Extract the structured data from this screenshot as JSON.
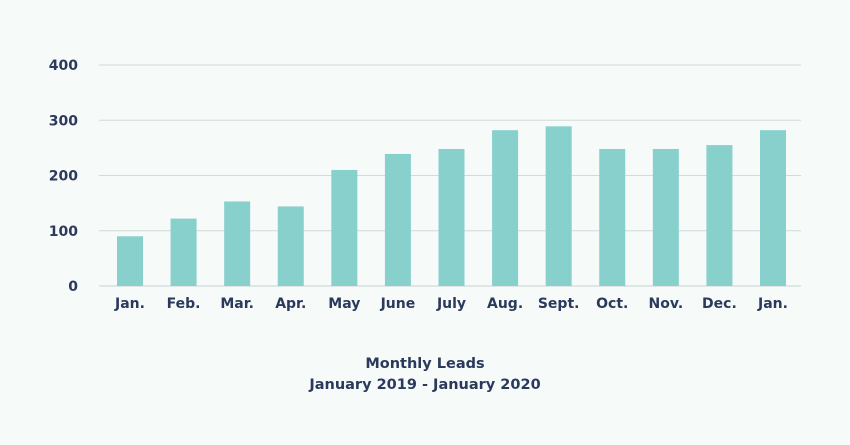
{
  "chart_data": {
    "type": "bar",
    "title": "Monthly Leads",
    "subtitle": "January 2019 - January 2020",
    "categories": [
      "Jan.",
      "Feb.",
      "Mar.",
      "Apr.",
      "May",
      "June",
      "July",
      "Aug.",
      "Sept.",
      "Oct.",
      "Nov.",
      "Dec.",
      "Jan."
    ],
    "values": [
      90,
      122,
      153,
      144,
      210,
      239,
      248,
      282,
      289,
      248,
      248,
      255,
      282
    ],
    "xlabel": "",
    "ylabel": "",
    "ylim": [
      0,
      400
    ],
    "yticks": [
      0,
      100,
      200,
      300,
      400
    ],
    "grid": true,
    "legend": "none",
    "colors": {
      "bar": "#87d0cc",
      "grid": "#cfdcda",
      "text": "#2b3a5c",
      "background": "#f6faf9"
    }
  }
}
